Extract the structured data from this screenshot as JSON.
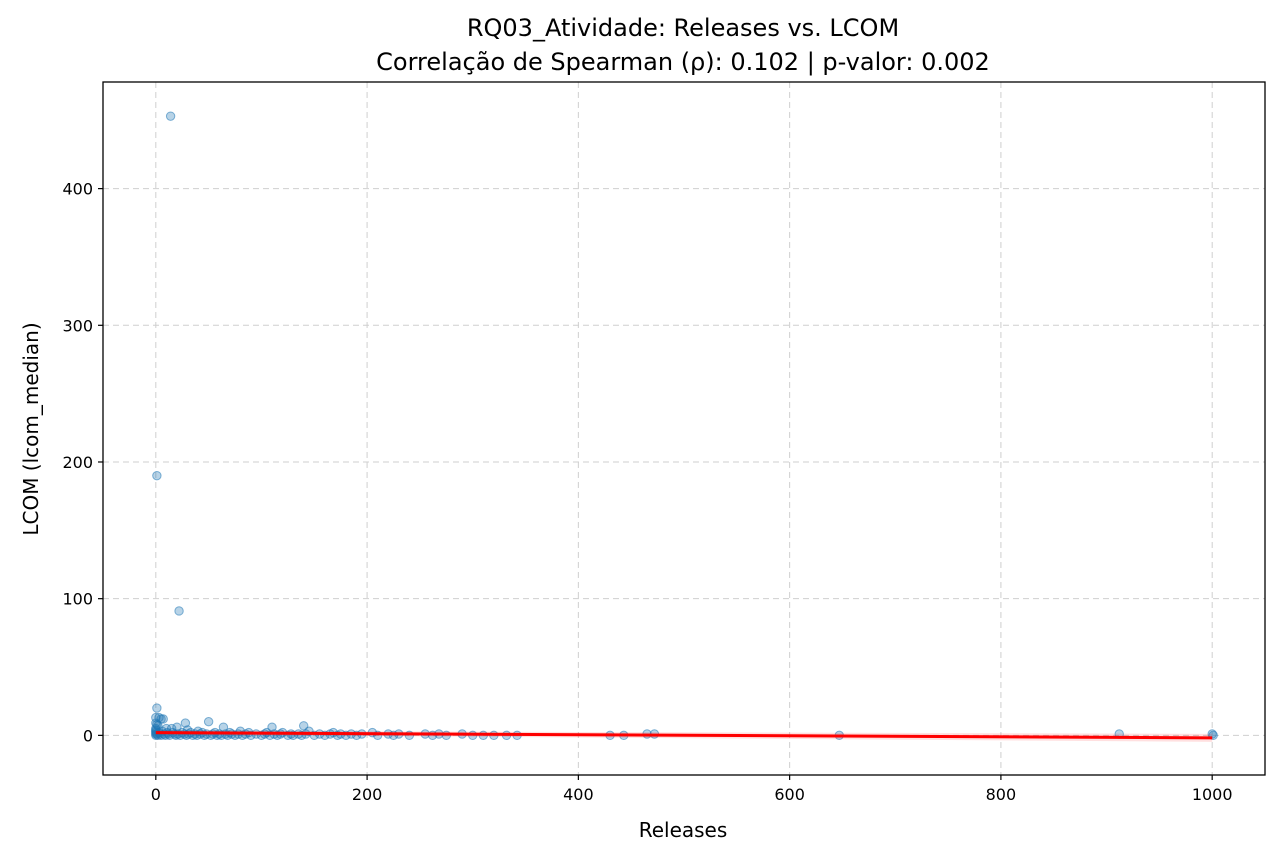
{
  "chart_data": {
    "type": "scatter",
    "title": "RQ03_Atividade: Releases vs. LCOM",
    "subtitle": "Correlação de Spearman (ρ): 0.102 | p-valor: 0.002",
    "xlabel": "Releases",
    "ylabel": "LCOM (lcom_median)",
    "xlim": [
      -50,
      1050
    ],
    "ylim": [
      -29,
      478
    ],
    "xticks": [
      0,
      200,
      400,
      600,
      800,
      1000
    ],
    "yticks": [
      0,
      100,
      200,
      300,
      400
    ],
    "grid": true,
    "colors": {
      "points": "#1f77b4",
      "regression": "#ff0000"
    },
    "regression_line": {
      "x": [
        0,
        1000
      ],
      "y": [
        2.0,
        -1.8
      ]
    },
    "series": [
      {
        "points": [
          [
            14,
            453
          ],
          [
            1,
            190
          ],
          [
            22,
            91
          ],
          [
            1,
            20
          ],
          [
            0,
            13
          ],
          [
            3,
            13
          ],
          [
            5,
            12
          ],
          [
            7,
            12
          ],
          [
            0,
            9
          ],
          [
            1,
            8
          ],
          [
            2,
            7
          ],
          [
            28,
            9
          ],
          [
            50,
            10
          ],
          [
            64,
            6
          ],
          [
            110,
            6
          ],
          [
            140,
            7
          ],
          [
            20,
            6
          ],
          [
            10,
            5
          ],
          [
            15,
            5
          ],
          [
            30,
            4
          ],
          [
            40,
            3
          ],
          [
            0,
            5
          ],
          [
            0,
            4
          ],
          [
            0,
            3
          ],
          [
            0,
            2
          ],
          [
            0,
            1
          ],
          [
            0,
            0
          ],
          [
            1,
            1
          ],
          [
            2,
            0
          ],
          [
            3,
            2
          ],
          [
            4,
            1
          ],
          [
            5,
            0
          ],
          [
            6,
            3
          ],
          [
            8,
            1
          ],
          [
            9,
            0
          ],
          [
            11,
            2
          ],
          [
            12,
            1
          ],
          [
            13,
            0
          ],
          [
            16,
            2
          ],
          [
            18,
            1
          ],
          [
            19,
            0
          ],
          [
            21,
            1
          ],
          [
            23,
            0
          ],
          [
            25,
            2
          ],
          [
            27,
            1
          ],
          [
            29,
            0
          ],
          [
            31,
            1
          ],
          [
            33,
            2
          ],
          [
            35,
            0
          ],
          [
            37,
            1
          ],
          [
            39,
            0
          ],
          [
            42,
            1
          ],
          [
            44,
            2
          ],
          [
            46,
            0
          ],
          [
            48,
            1
          ],
          [
            52,
            0
          ],
          [
            54,
            1
          ],
          [
            56,
            2
          ],
          [
            58,
            0
          ],
          [
            60,
            1
          ],
          [
            62,
            0
          ],
          [
            66,
            1
          ],
          [
            68,
            0
          ],
          [
            70,
            2
          ],
          [
            72,
            1
          ],
          [
            75,
            0
          ],
          [
            78,
            1
          ],
          [
            80,
            3
          ],
          [
            82,
            0
          ],
          [
            85,
            1
          ],
          [
            88,
            2
          ],
          [
            90,
            0
          ],
          [
            95,
            1
          ],
          [
            100,
            0
          ],
          [
            103,
            1
          ],
          [
            105,
            2
          ],
          [
            108,
            0
          ],
          [
            112,
            1
          ],
          [
            115,
            0
          ],
          [
            118,
            1
          ],
          [
            120,
            2
          ],
          [
            125,
            0
          ],
          [
            128,
            1
          ],
          [
            130,
            0
          ],
          [
            135,
            1
          ],
          [
            138,
            0
          ],
          [
            142,
            1
          ],
          [
            145,
            3
          ],
          [
            150,
            0
          ],
          [
            155,
            1
          ],
          [
            160,
            0
          ],
          [
            165,
            1
          ],
          [
            168,
            2
          ],
          [
            172,
            0
          ],
          [
            175,
            1
          ],
          [
            180,
            0
          ],
          [
            185,
            1
          ],
          [
            190,
            0
          ],
          [
            195,
            1
          ],
          [
            205,
            2
          ],
          [
            210,
            0
          ],
          [
            220,
            1
          ],
          [
            225,
            0
          ],
          [
            230,
            1
          ],
          [
            240,
            0
          ],
          [
            255,
            1
          ],
          [
            262,
            0
          ],
          [
            268,
            1
          ],
          [
            275,
            0
          ],
          [
            290,
            1
          ],
          [
            300,
            0
          ],
          [
            310,
            0
          ],
          [
            320,
            0
          ],
          [
            332,
            0
          ],
          [
            342,
            0
          ],
          [
            430,
            0
          ],
          [
            443,
            0
          ],
          [
            465,
            1
          ],
          [
            472,
            1
          ],
          [
            647,
            0
          ],
          [
            912,
            1
          ],
          [
            1000,
            1
          ],
          [
            1001,
            0
          ]
        ]
      }
    ]
  }
}
